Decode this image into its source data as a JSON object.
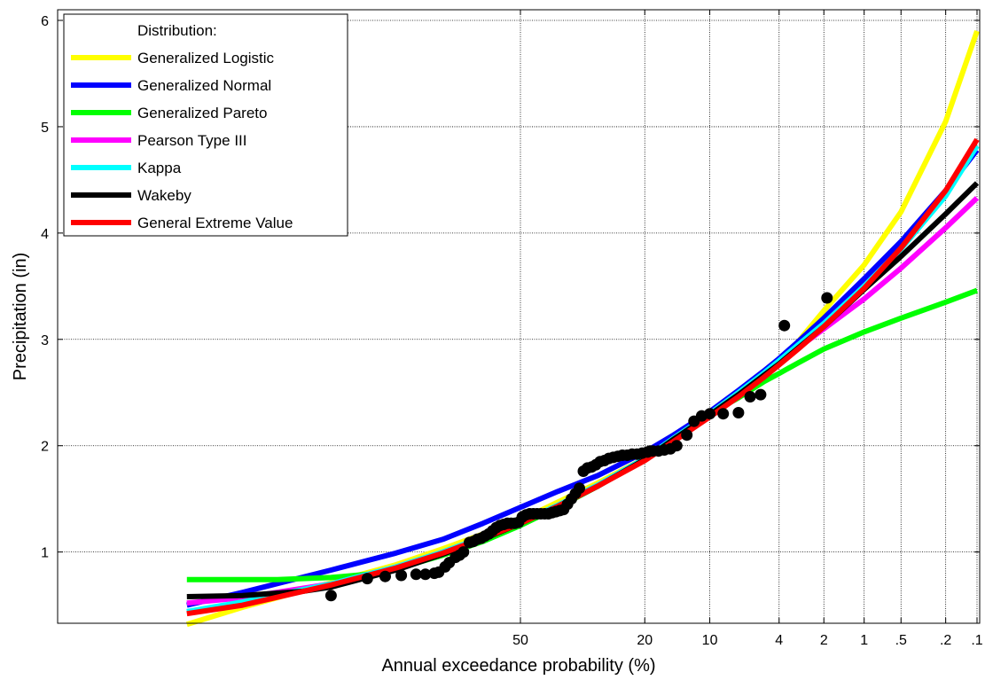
{
  "chart_data": {
    "type": "line",
    "xlabel": "Annual exceedance probability (%)",
    "ylabel": "Precipitation (in)",
    "x_scale": "normal-probability (reversed)",
    "ylim": [
      0.33,
      6.1
    ],
    "yticks": [
      1,
      2,
      3,
      4,
      5,
      6
    ],
    "xticks": [
      {
        "p": 50,
        "label": "50"
      },
      {
        "p": 20,
        "label": "20"
      },
      {
        "p": 10,
        "label": "10"
      },
      {
        "p": 4,
        "label": "4"
      },
      {
        "p": 2,
        "label": "2"
      },
      {
        "p": 1,
        "label": "1"
      },
      {
        "p": 0.5,
        "label": ".5"
      },
      {
        "p": 0.2,
        "label": ".2"
      },
      {
        "p": 0.1,
        "label": ".1"
      }
    ],
    "grid": true,
    "legend": {
      "title": "Distribution:",
      "placement": "top-left"
    },
    "series": [
      {
        "name": "Generalized Logistic",
        "color": "#ffff00",
        "points": [
          [
            98.8,
            0.32
          ],
          [
            97,
            0.48
          ],
          [
            90,
            0.71
          ],
          [
            80,
            0.88
          ],
          [
            70,
            1.03
          ],
          [
            60,
            1.17
          ],
          [
            50,
            1.3
          ],
          [
            40,
            1.47
          ],
          [
            30,
            1.65
          ],
          [
            20,
            1.88
          ],
          [
            15,
            2.05
          ],
          [
            10,
            2.28
          ],
          [
            7,
            2.47
          ],
          [
            5,
            2.67
          ],
          [
            4,
            2.79
          ],
          [
            3,
            2.98
          ],
          [
            2,
            3.27
          ],
          [
            1,
            3.7
          ],
          [
            0.5,
            4.2
          ],
          [
            0.2,
            5.05
          ],
          [
            0.1,
            5.9
          ]
        ]
      },
      {
        "name": "Generalized Normal",
        "color": "#0000ff",
        "points": [
          [
            98.8,
            0.5
          ],
          [
            97,
            0.62
          ],
          [
            90,
            0.83
          ],
          [
            80,
            0.99
          ],
          [
            70,
            1.12
          ],
          [
            60,
            1.27
          ],
          [
            50,
            1.42
          ],
          [
            40,
            1.57
          ],
          [
            30,
            1.72
          ],
          [
            20,
            1.94
          ],
          [
            15,
            2.1
          ],
          [
            10,
            2.32
          ],
          [
            7,
            2.52
          ],
          [
            5,
            2.7
          ],
          [
            4,
            2.82
          ],
          [
            3,
            2.98
          ],
          [
            2,
            3.2
          ],
          [
            1,
            3.57
          ],
          [
            0.5,
            3.92
          ],
          [
            0.2,
            4.4
          ],
          [
            0.1,
            4.78
          ]
        ]
      },
      {
        "name": "Generalized Pareto",
        "color": "#00ff00",
        "points": [
          [
            98.8,
            0.74
          ],
          [
            95,
            0.74
          ],
          [
            90,
            0.76
          ],
          [
            85,
            0.79
          ],
          [
            80,
            0.84
          ],
          [
            70,
            0.97
          ],
          [
            60,
            1.1
          ],
          [
            50,
            1.25
          ],
          [
            40,
            1.42
          ],
          [
            30,
            1.62
          ],
          [
            20,
            1.88
          ],
          [
            15,
            2.07
          ],
          [
            10,
            2.3
          ],
          [
            7,
            2.45
          ],
          [
            5,
            2.6
          ],
          [
            4,
            2.68
          ],
          [
            3,
            2.78
          ],
          [
            2,
            2.91
          ],
          [
            1,
            3.07
          ],
          [
            0.5,
            3.2
          ],
          [
            0.2,
            3.35
          ],
          [
            0.1,
            3.46
          ]
        ]
      },
      {
        "name": "Pearson Type III",
        "color": "#ff00ff",
        "points": [
          [
            98.8,
            0.52
          ],
          [
            97,
            0.57
          ],
          [
            90,
            0.7
          ],
          [
            80,
            0.86
          ],
          [
            70,
            1.0
          ],
          [
            60,
            1.14
          ],
          [
            50,
            1.28
          ],
          [
            40,
            1.44
          ],
          [
            30,
            1.63
          ],
          [
            20,
            1.88
          ],
          [
            15,
            2.07
          ],
          [
            10,
            2.3
          ],
          [
            7,
            2.5
          ],
          [
            5,
            2.67
          ],
          [
            4,
            2.78
          ],
          [
            3,
            2.92
          ],
          [
            2,
            3.1
          ],
          [
            1,
            3.38
          ],
          [
            0.5,
            3.67
          ],
          [
            0.2,
            4.05
          ],
          [
            0.1,
            4.33
          ]
        ]
      },
      {
        "name": "Kappa",
        "color": "#00ffff",
        "points": [
          [
            98.8,
            0.44
          ],
          [
            97,
            0.53
          ],
          [
            90,
            0.7
          ],
          [
            80,
            0.86
          ],
          [
            70,
            1.0
          ],
          [
            60,
            1.14
          ],
          [
            50,
            1.28
          ],
          [
            40,
            1.44
          ],
          [
            30,
            1.63
          ],
          [
            20,
            1.88
          ],
          [
            15,
            2.07
          ],
          [
            10,
            2.3
          ],
          [
            7,
            2.5
          ],
          [
            5,
            2.68
          ],
          [
            4,
            2.8
          ],
          [
            3,
            2.95
          ],
          [
            2,
            3.15
          ],
          [
            1,
            3.5
          ],
          [
            0.5,
            3.85
          ],
          [
            0.2,
            4.35
          ],
          [
            0.1,
            4.82
          ]
        ]
      },
      {
        "name": "Wakeby",
        "color": "#000000",
        "points": [
          [
            98.8,
            0.58
          ],
          [
            97,
            0.59
          ],
          [
            93,
            0.63
          ],
          [
            90,
            0.67
          ],
          [
            80,
            0.83
          ],
          [
            70,
            0.98
          ],
          [
            60,
            1.12
          ],
          [
            50,
            1.27
          ],
          [
            40,
            1.43
          ],
          [
            30,
            1.62
          ],
          [
            20,
            1.87
          ],
          [
            15,
            2.06
          ],
          [
            10,
            2.29
          ],
          [
            7,
            2.48
          ],
          [
            5,
            2.66
          ],
          [
            4,
            2.77
          ],
          [
            3,
            2.92
          ],
          [
            2,
            3.12
          ],
          [
            1,
            3.47
          ],
          [
            0.5,
            3.78
          ],
          [
            0.2,
            4.18
          ],
          [
            0.1,
            4.47
          ]
        ]
      },
      {
        "name": "General Extreme Value",
        "color": "#ff0000",
        "points": [
          [
            98.8,
            0.42
          ],
          [
            97,
            0.5
          ],
          [
            90,
            0.69
          ],
          [
            80,
            0.85
          ],
          [
            70,
            0.99
          ],
          [
            60,
            1.13
          ],
          [
            50,
            1.27
          ],
          [
            40,
            1.43
          ],
          [
            30,
            1.62
          ],
          [
            20,
            1.86
          ],
          [
            15,
            2.04
          ],
          [
            10,
            2.27
          ],
          [
            7,
            2.46
          ],
          [
            5,
            2.64
          ],
          [
            4,
            2.76
          ],
          [
            3,
            2.91
          ],
          [
            2,
            3.12
          ],
          [
            1,
            3.48
          ],
          [
            0.5,
            3.86
          ],
          [
            0.2,
            4.4
          ],
          [
            0.1,
            4.88
          ]
        ]
      }
    ],
    "observed": {
      "name": "",
      "color": "#000000",
      "points": [
        [
          90,
          0.59
        ],
        [
          85,
          0.75
        ],
        [
          82,
          0.77
        ],
        [
          79,
          0.78
        ],
        [
          76,
          0.79
        ],
        [
          74,
          0.79
        ],
        [
          72,
          0.8
        ],
        [
          71,
          0.81
        ],
        [
          69.5,
          0.86
        ],
        [
          68.5,
          0.9
        ],
        [
          67,
          0.95
        ],
        [
          66,
          0.97
        ],
        [
          65,
          1.0
        ],
        [
          63.5,
          1.09
        ],
        [
          62.5,
          1.1
        ],
        [
          61.5,
          1.12
        ],
        [
          60.5,
          1.13
        ],
        [
          59.5,
          1.15
        ],
        [
          58.5,
          1.17
        ],
        [
          57.5,
          1.2
        ],
        [
          56.5,
          1.23
        ],
        [
          55.5,
          1.25
        ],
        [
          54.5,
          1.26
        ],
        [
          53.5,
          1.27
        ],
        [
          52.5,
          1.27
        ],
        [
          51.5,
          1.27
        ],
        [
          50.5,
          1.28
        ],
        [
          49.5,
          1.33
        ],
        [
          48.5,
          1.35
        ],
        [
          47.5,
          1.36
        ],
        [
          46.5,
          1.36
        ],
        [
          45.5,
          1.36
        ],
        [
          44.5,
          1.36
        ],
        [
          43.5,
          1.36
        ],
        [
          42.5,
          1.36
        ],
        [
          41.5,
          1.37
        ],
        [
          40.5,
          1.38
        ],
        [
          39.5,
          1.39
        ],
        [
          38.5,
          1.4
        ],
        [
          37.5,
          1.45
        ],
        [
          36.5,
          1.5
        ],
        [
          35.5,
          1.55
        ],
        [
          34.5,
          1.6
        ],
        [
          33.5,
          1.76
        ],
        [
          32.5,
          1.79
        ],
        [
          31.5,
          1.8
        ],
        [
          30.5,
          1.82
        ],
        [
          29.5,
          1.85
        ],
        [
          28.5,
          1.86
        ],
        [
          27.5,
          1.88
        ],
        [
          26.5,
          1.89
        ],
        [
          25.5,
          1.9
        ],
        [
          24.5,
          1.91
        ],
        [
          23.5,
          1.91
        ],
        [
          22.5,
          1.92
        ],
        [
          21.5,
          1.92
        ],
        [
          20.5,
          1.93
        ],
        [
          19.5,
          1.94
        ],
        [
          19,
          1.95
        ],
        [
          18.5,
          1.95
        ],
        [
          17.5,
          1.95
        ],
        [
          16.5,
          1.96
        ],
        [
          15.5,
          1.97
        ],
        [
          14.5,
          2.0
        ],
        [
          13,
          2.1
        ],
        [
          12,
          2.23
        ],
        [
          11,
          2.28
        ],
        [
          10,
          2.3
        ],
        [
          8.5,
          2.3
        ],
        [
          7,
          2.31
        ],
        [
          6,
          2.46
        ],
        [
          5.2,
          2.48
        ],
        [
          3.7,
          3.13
        ],
        [
          1.9,
          3.39
        ]
      ]
    }
  }
}
